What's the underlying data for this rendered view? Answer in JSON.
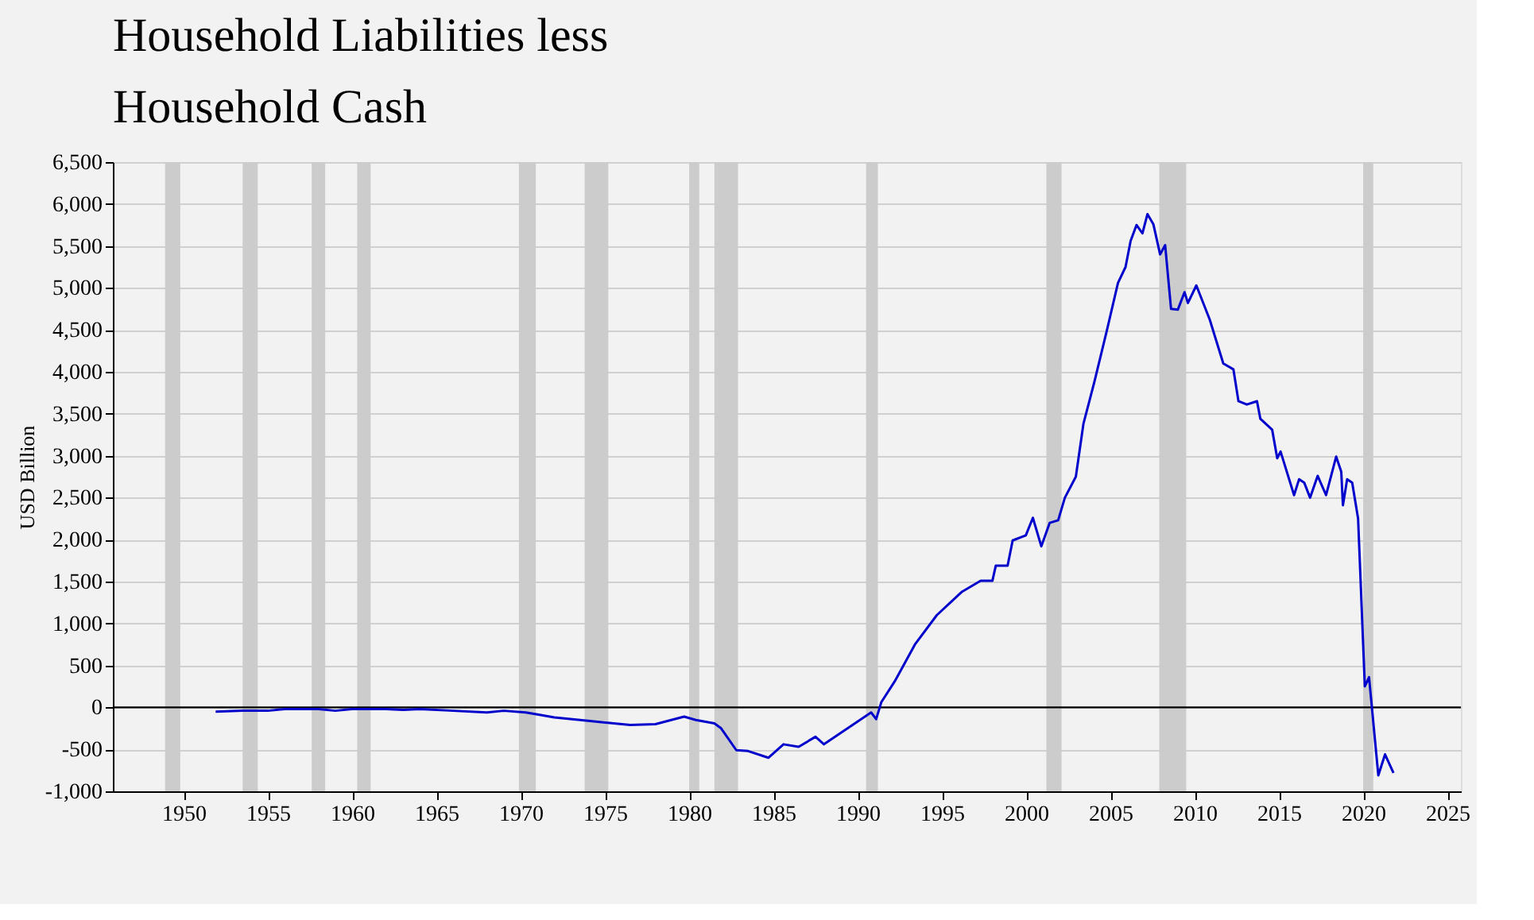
{
  "chart_data": {
    "type": "line",
    "title": "Household Liabilities less\nHousehold Cash",
    "ylabel": "USD Billion",
    "x": [
      1951.9,
      1953.5,
      1955,
      1956,
      1958,
      1959,
      1960,
      1962,
      1963,
      1964,
      1966,
      1968,
      1969,
      1970.3,
      1971.2,
      1972,
      1974,
      1976.5,
      1978,
      1979.7,
      1980.4,
      1981.5,
      1981.9,
      1982.8,
      1983.5,
      1984.7,
      1985.6,
      1986.5,
      1987.5,
      1988,
      1989.4,
      1990.8,
      1991.1,
      1991.4,
      1992.2,
      1993.4,
      1994.7,
      1996.2,
      1997.3,
      1998.0,
      1998.2,
      1998.9,
      1999.2,
      1999.98,
      2000.4,
      2000.9,
      2001.4,
      2001.9,
      2002.3,
      2002.95,
      2003.4,
      2004.05,
      2004.8,
      2005.45,
      2005.9,
      2006.2,
      2006.55,
      2006.9,
      2007.2,
      2007.55,
      2007.95,
      2008.25,
      2008.6,
      2009.0,
      2009.4,
      2009.6,
      2010.1,
      2010.9,
      2011.7,
      2012.3,
      2012.6,
      2013.1,
      2013.7,
      2013.9,
      2014.6,
      2014.9,
      2015.1,
      2015.9,
      2016.2,
      2016.5,
      2016.85,
      2017.3,
      2017.8,
      2018.4,
      2018.7,
      2018.8,
      2019.05,
      2019.35,
      2019.7,
      2020.1,
      2020.35,
      2020.9,
      2021.3,
      2021.8
    ],
    "series": [
      {
        "color": "#0000cc",
        "values": [
          -50,
          -40,
          -40,
          -20,
          -20,
          -40,
          -20,
          -20,
          -30,
          -20,
          -40,
          -60,
          -40,
          -60,
          -90,
          -120,
          -160,
          -210,
          -200,
          -110,
          -150,
          -190,
          -250,
          -510,
          -520,
          -600,
          -440,
          -470,
          -350,
          -440,
          -250,
          -60,
          -140,
          60,
          310,
          750,
          1100,
          1380,
          1510,
          1510,
          1690,
          1690,
          1990,
          2050,
          2260,
          1920,
          2200,
          2230,
          2500,
          2750,
          3380,
          3880,
          4500,
          5060,
          5250,
          5560,
          5750,
          5650,
          5880,
          5760,
          5400,
          5510,
          4750,
          4740,
          4950,
          4820,
          5030,
          4620,
          4100,
          4030,
          3650,
          3610,
          3650,
          3440,
          3310,
          2970,
          3050,
          2530,
          2720,
          2680,
          2500,
          2760,
          2530,
          2990,
          2810,
          2410,
          2720,
          2680,
          2250,
          250,
          360,
          -810,
          -560,
          -780
        ]
      }
    ],
    "xlim": [
      1945.8,
      2025.8
    ],
    "xticks": [
      1950,
      1955,
      1960,
      1965,
      1970,
      1975,
      1980,
      1985,
      1990,
      1995,
      2000,
      2005,
      2010,
      2015,
      2020,
      2025
    ],
    "ylim": [
      -1000,
      6500
    ],
    "yticks": [
      {
        "value": -1000,
        "label": "-1,000"
      },
      -500,
      0,
      500,
      {
        "value": 1000,
        "label": "1,000"
      },
      {
        "value": 1500,
        "label": "1,500"
      },
      {
        "value": 2000,
        "label": "2,000"
      },
      {
        "value": 2500,
        "label": "2,500"
      },
      {
        "value": 3000,
        "label": "3,000"
      },
      {
        "value": 3500,
        "label": "3,500"
      },
      {
        "value": 4000,
        "label": "4,000"
      },
      {
        "value": 4500,
        "label": "4,500"
      },
      {
        "value": 5000,
        "label": "5,000"
      },
      {
        "value": 5500,
        "label": "5,500"
      },
      {
        "value": 6000,
        "label": "6,000"
      },
      {
        "value": 6500,
        "label": "6,500"
      }
    ],
    "ref_lines": [
      {
        "axis": "y",
        "value": 0,
        "color": "#000000"
      }
    ],
    "bands": [
      {
        "axis": "x",
        "from": 1948.9,
        "to": 1949.8,
        "color": "#cccccc"
      },
      {
        "axis": "x",
        "from": 1953.5,
        "to": 1954.4,
        "color": "#cccccc"
      },
      {
        "axis": "x",
        "from": 1957.6,
        "to": 1958.4,
        "color": "#cccccc"
      },
      {
        "axis": "x",
        "from": 1960.3,
        "to": 1961.1,
        "color": "#cccccc"
      },
      {
        "axis": "x",
        "from": 1969.9,
        "to": 1970.9,
        "color": "#cccccc"
      },
      {
        "axis": "x",
        "from": 1973.8,
        "to": 1975.2,
        "color": "#cccccc"
      },
      {
        "axis": "x",
        "from": 1980.0,
        "to": 1980.6,
        "color": "#cccccc"
      },
      {
        "axis": "x",
        "from": 1981.5,
        "to": 1982.9,
        "color": "#cccccc"
      },
      {
        "axis": "x",
        "from": 1990.5,
        "to": 1991.2,
        "color": "#cccccc"
      },
      {
        "axis": "x",
        "from": 2001.2,
        "to": 2002.1,
        "color": "#cccccc"
      },
      {
        "axis": "x",
        "from": 2007.9,
        "to": 2009.5,
        "color": "#cccccc"
      },
      {
        "axis": "x",
        "from": 2020.0,
        "to": 2020.6,
        "color": "#cccccc"
      }
    ],
    "grid": "y",
    "marker": "none",
    "line_style": "solid"
  }
}
